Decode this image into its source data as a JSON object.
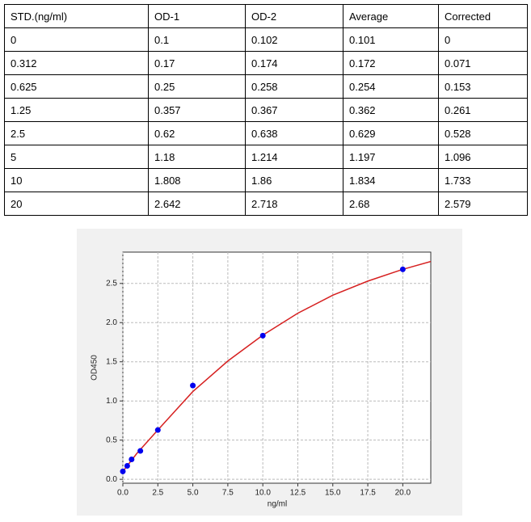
{
  "table": {
    "header": [
      "STD.(ng/ml)",
      "OD-1",
      "OD-2",
      "Average",
      "Corrected"
    ],
    "rows": [
      [
        "0",
        "0.1",
        "0.102",
        "0.101",
        "0"
      ],
      [
        "0.312",
        "0.17",
        "0.174",
        "0.172",
        "0.071"
      ],
      [
        "0.625",
        "0.25",
        "0.258",
        "0.254",
        "0.153"
      ],
      [
        "1.25",
        "0.357",
        "0.367",
        "0.362",
        "0.261"
      ],
      [
        "2.5",
        "0.62",
        "0.638",
        "0.629",
        "0.528"
      ],
      [
        "5",
        "1.18",
        "1.214",
        "1.197",
        "1.096"
      ],
      [
        "10",
        "1.808",
        "1.86",
        "1.834",
        "1.733"
      ],
      [
        "20",
        "2.642",
        "2.718",
        "2.68",
        "2.579"
      ]
    ]
  },
  "chart_data": {
    "type": "scatter",
    "xlabel": "ng/ml",
    "ylabel": "OD450",
    "series": [
      {
        "kind": "points",
        "color": "#0000ee",
        "x": [
          0,
          0.312,
          0.625,
          1.25,
          2.5,
          5,
          10,
          20
        ],
        "values": [
          0.101,
          0.172,
          0.254,
          0.362,
          0.629,
          1.197,
          1.834,
          2.68
        ]
      },
      {
        "kind": "line",
        "color": "#d62020",
        "x": [
          0,
          1,
          2.5,
          5,
          7.5,
          10,
          12.5,
          15,
          17.5,
          20,
          22
        ],
        "values": [
          0.1,
          0.33,
          0.63,
          1.12,
          1.51,
          1.84,
          2.12,
          2.35,
          2.53,
          2.68,
          2.78
        ]
      }
    ],
    "xlim": [
      0,
      22
    ],
    "ylim": [
      -0.05,
      2.9
    ],
    "xticks": [
      {
        "value": 0,
        "label": "0.0"
      },
      {
        "value": 2.5,
        "label": "2.5"
      },
      {
        "value": 5,
        "label": "5.0"
      },
      {
        "value": 7.5,
        "label": "7.5"
      },
      {
        "value": 10,
        "label": "10.0"
      },
      {
        "value": 12.5,
        "label": "12.5"
      },
      {
        "value": 15,
        "label": "15.0"
      },
      {
        "value": 17.5,
        "label": "17.5"
      },
      {
        "value": 20,
        "label": "20.0"
      }
    ],
    "yticks": [
      {
        "value": 0,
        "label": "0.0"
      },
      {
        "value": 0.5,
        "label": "0.5"
      },
      {
        "value": 1,
        "label": "1.0"
      },
      {
        "value": 1.5,
        "label": "1.5"
      },
      {
        "value": 2,
        "label": "2.0"
      },
      {
        "value": 2.5,
        "label": "2.5"
      }
    ],
    "grid": true
  }
}
